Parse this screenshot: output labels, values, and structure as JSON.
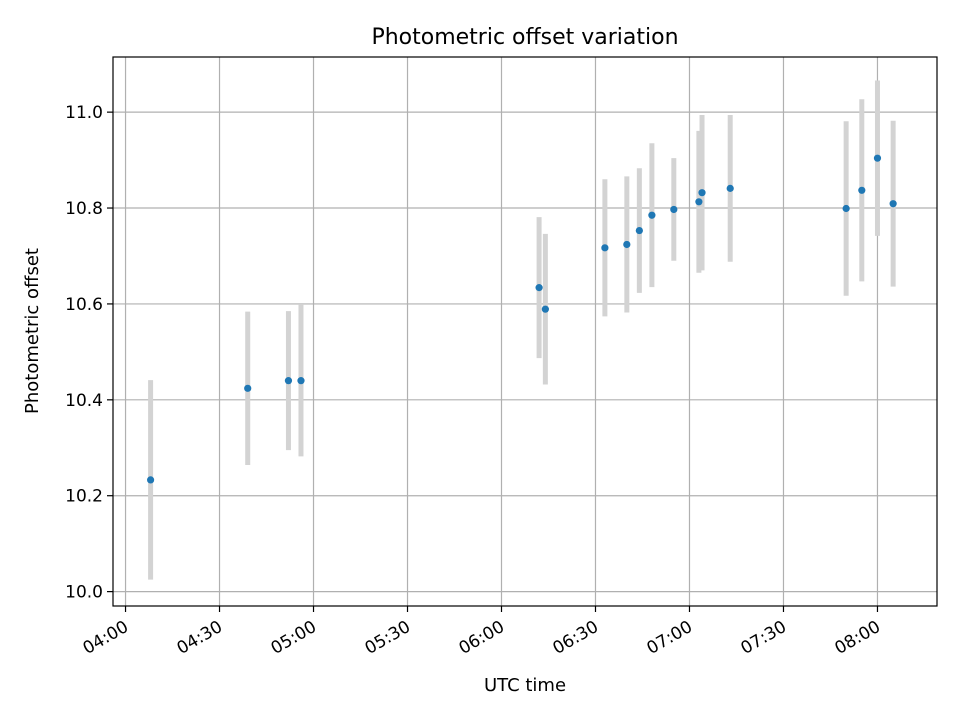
{
  "chart_data": {
    "type": "scatter",
    "title": "Photometric offset variation",
    "xlabel": "UTC time",
    "ylabel": "Photometric offset",
    "xlim": [
      "03:56",
      "08:19"
    ],
    "ylim": [
      9.97,
      11.115
    ],
    "x_ticks": [
      "04:00",
      "04:30",
      "05:00",
      "05:30",
      "06:00",
      "06:30",
      "07:00",
      "07:30",
      "08:00"
    ],
    "y_ticks": [
      "10.0",
      "10.2",
      "10.4",
      "10.6",
      "10.8",
      "11.0"
    ],
    "grid": true,
    "point_color": "#1f77b4",
    "errorbar_color": "#d3d3d3",
    "points": [
      {
        "t": "04:08",
        "y": 10.233,
        "err": 0.208
      },
      {
        "t": "04:39",
        "y": 10.424,
        "err": 0.16
      },
      {
        "t": "04:52",
        "y": 10.44,
        "err": 0.145
      },
      {
        "t": "04:56",
        "y": 10.44,
        "err": 0.158
      },
      {
        "t": "06:12",
        "y": 10.634,
        "err": 0.147
      },
      {
        "t": "06:14",
        "y": 10.589,
        "err": 0.157
      },
      {
        "t": "06:33",
        "y": 10.717,
        "err": 0.143
      },
      {
        "t": "06:40",
        "y": 10.724,
        "err": 0.142
      },
      {
        "t": "06:44",
        "y": 10.753,
        "err": 0.13
      },
      {
        "t": "06:48",
        "y": 10.785,
        "err": 0.15
      },
      {
        "t": "06:55",
        "y": 10.797,
        "err": 0.107
      },
      {
        "t": "07:03",
        "y": 10.813,
        "err": 0.148
      },
      {
        "t": "07:04",
        "y": 10.832,
        "err": 0.162
      },
      {
        "t": "07:13",
        "y": 10.841,
        "err": 0.153
      },
      {
        "t": "07:50",
        "y": 10.799,
        "err": 0.182
      },
      {
        "t": "07:55",
        "y": 10.837,
        "err": 0.19
      },
      {
        "t": "08:00",
        "y": 10.904,
        "err": 0.162
      },
      {
        "t": "08:05",
        "y": 10.809,
        "err": 0.173
      }
    ]
  }
}
